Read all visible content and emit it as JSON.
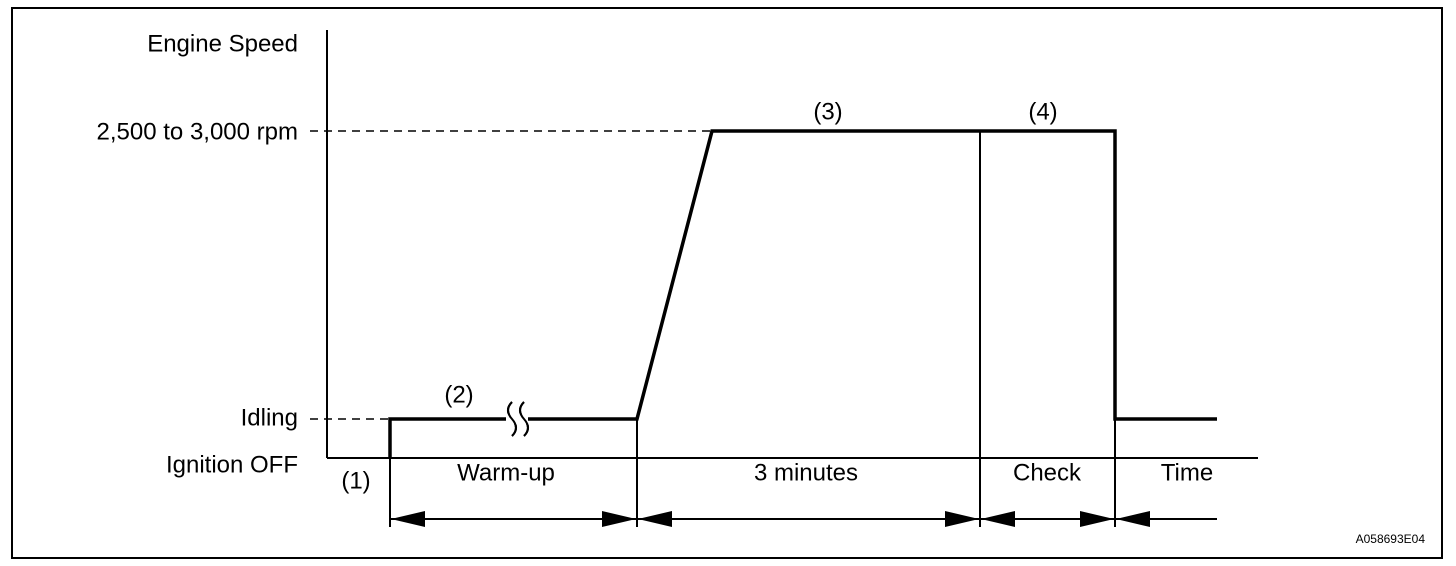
{
  "diagram": {
    "y_axis_label": "Engine Speed",
    "levels": [
      "2,500 to 3,000 rpm",
      "Idling",
      "Ignition OFF"
    ],
    "steps": [
      "(1)",
      "(2)",
      "(3)",
      "(4)"
    ],
    "phases": [
      "Warm-up",
      "3 minutes",
      "Check"
    ],
    "x_axis_label": "Time",
    "figure_code": "A058693E04"
  }
}
